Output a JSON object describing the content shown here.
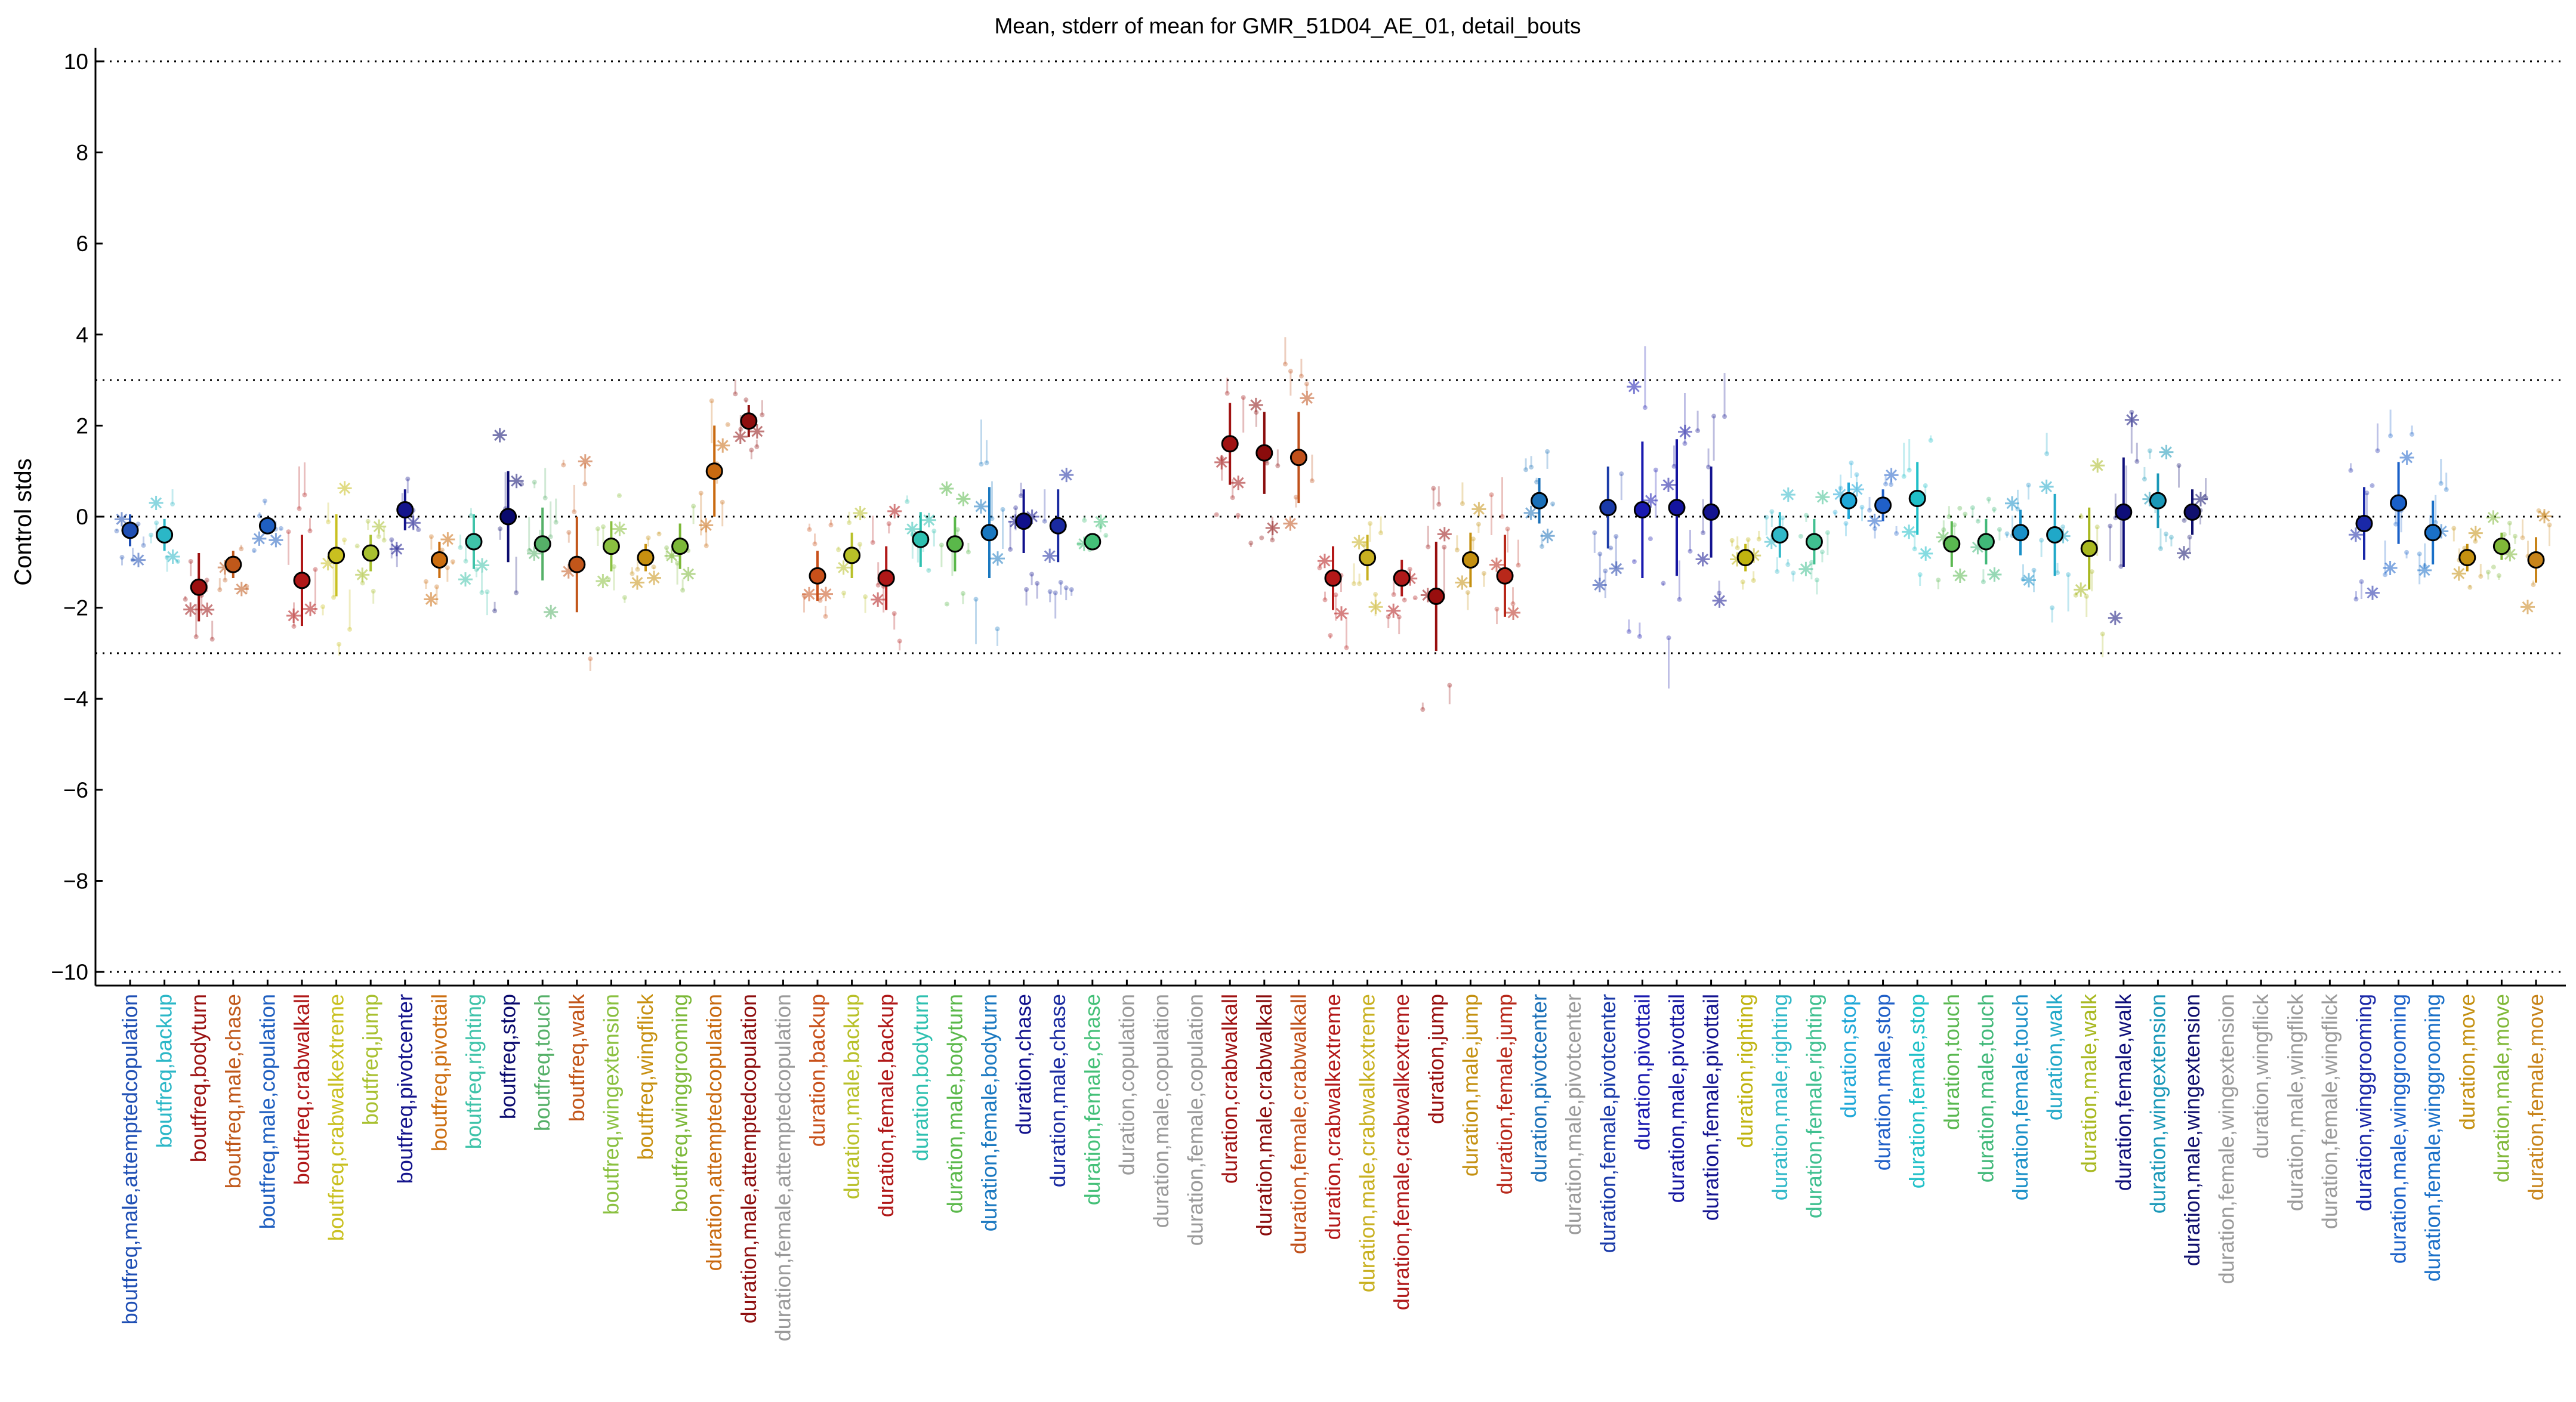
{
  "chart_data": {
    "type": "scatter",
    "title": "Mean, stderr of mean for GMR_51D04_AE_01, detail_bouts",
    "ylabel": "Control stds",
    "xlabel": "",
    "ylim": [
      -10.3,
      10.3
    ],
    "yticks": [
      -10,
      -8,
      -6,
      -4,
      -2,
      0,
      2,
      4,
      6,
      8,
      10
    ],
    "reference_lines": [
      -10,
      -3,
      0,
      3,
      10
    ],
    "grid": false,
    "categories": [
      {
        "label": "boutfreq,male,attemptedcopulation",
        "mean": -0.3,
        "err": 0.35,
        "color": "#1f4fb4"
      },
      {
        "label": "boutfreq,backup",
        "mean": -0.4,
        "err": 0.35,
        "color": "#2bb7c7"
      },
      {
        "label": "boutfreq,bodyturn",
        "mean": -1.55,
        "err": 0.75,
        "color": "#9b1010"
      },
      {
        "label": "boutfreq,male,chase",
        "mean": -1.05,
        "err": 0.3,
        "color": "#c0581a"
      },
      {
        "label": "boutfreq,male,copulation",
        "mean": -0.2,
        "err": 0.15,
        "color": "#1f5fc0"
      },
      {
        "label": "boutfreq,crabwalkall",
        "mean": -1.4,
        "err": 1.0,
        "color": "#b01818"
      },
      {
        "label": "boutfreq,crabwalkextreme",
        "mean": -0.85,
        "err": 0.9,
        "color": "#c9c020"
      },
      {
        "label": "boutfreq,jump",
        "mean": -0.8,
        "err": 0.4,
        "color": "#a8c030"
      },
      {
        "label": "boutfreq,pivotcenter",
        "mean": 0.15,
        "err": 0.45,
        "color": "#14148c"
      },
      {
        "label": "boutfreq,pivottail",
        "mean": -0.95,
        "err": 0.4,
        "color": "#cc6e10"
      },
      {
        "label": "boutfreq,righting",
        "mean": -0.55,
        "err": 0.6,
        "color": "#3fc3a9"
      },
      {
        "label": "boutfreq,stop",
        "mean": 0.0,
        "err": 1.0,
        "color": "#0a0a6e"
      },
      {
        "label": "boutfreq,touch",
        "mean": -0.6,
        "err": 0.8,
        "color": "#55b068"
      },
      {
        "label": "boutfreq,walk",
        "mean": -1.05,
        "err": 1.05,
        "color": "#c2561a"
      },
      {
        "label": "boutfreq,wingextension",
        "mean": -0.65,
        "err": 0.55,
        "color": "#8ac040"
      },
      {
        "label": "boutfreq,wingflick",
        "mean": -0.9,
        "err": 0.3,
        "color": "#c79010"
      },
      {
        "label": "boutfreq,winggrooming",
        "mean": -0.65,
        "err": 0.5,
        "color": "#7cb838"
      },
      {
        "label": "duration,attemptedcopulation",
        "mean": 1.0,
        "err": 1.0,
        "color": "#c96a10"
      },
      {
        "label": "duration,male,attemptedcopulation",
        "mean": 2.1,
        "err": 0.35,
        "color": "#8e0e0e"
      },
      {
        "label": "duration,female,attemptedcopulation",
        "mean": null,
        "err": null,
        "color": "#9a9a9a"
      },
      {
        "label": "duration,backup",
        "mean": -1.3,
        "err": 0.55,
        "color": "#c8501a"
      },
      {
        "label": "duration,male,backup",
        "mean": -0.85,
        "err": 0.5,
        "color": "#b8c028"
      },
      {
        "label": "duration,female,backup",
        "mean": -1.35,
        "err": 0.7,
        "color": "#b01818"
      },
      {
        "label": "duration,bodyturn",
        "mean": -0.5,
        "err": 0.6,
        "color": "#2ec0b0"
      },
      {
        "label": "duration,male,bodyturn",
        "mean": -0.6,
        "err": 0.6,
        "color": "#5ab84a"
      },
      {
        "label": "duration,female,bodyturn",
        "mean": -0.35,
        "err": 1.0,
        "color": "#1a78c0"
      },
      {
        "label": "duration,chase",
        "mean": -0.1,
        "err": 0.7,
        "color": "#10108c"
      },
      {
        "label": "duration,male,chase",
        "mean": -0.2,
        "err": 0.8,
        "color": "#1a2aa0"
      },
      {
        "label": "duration,female,chase",
        "mean": -0.55,
        "err": 0.15,
        "color": "#44c078"
      },
      {
        "label": "duration,copulation",
        "mean": null,
        "err": null,
        "color": "#9a9a9a"
      },
      {
        "label": "duration,male,copulation",
        "mean": null,
        "err": null,
        "color": "#9a9a9a"
      },
      {
        "label": "duration,female,copulation",
        "mean": null,
        "err": null,
        "color": "#9a9a9a"
      },
      {
        "label": "duration,crabwalkall",
        "mean": 1.6,
        "err": 0.9,
        "color": "#a01212"
      },
      {
        "label": "duration,male,crabwalkall",
        "mean": 1.4,
        "err": 0.9,
        "color": "#8a0c0c"
      },
      {
        "label": "duration,female,crabwalkall",
        "mean": 1.3,
        "err": 1.0,
        "color": "#c0501a"
      },
      {
        "label": "duration,crabwalkextreme",
        "mean": -1.35,
        "err": 0.7,
        "color": "#b41818"
      },
      {
        "label": "duration,male,crabwalkextreme",
        "mean": -0.9,
        "err": 0.5,
        "color": "#c8b020"
      },
      {
        "label": "duration,female,crabwalkextreme",
        "mean": -1.35,
        "err": 0.4,
        "color": "#b01a1a"
      },
      {
        "label": "duration,jump",
        "mean": -1.75,
        "err": 1.2,
        "color": "#980e0e"
      },
      {
        "label": "duration,male,jump",
        "mean": -0.95,
        "err": 0.6,
        "color": "#c49010"
      },
      {
        "label": "duration,female,jump",
        "mean": -1.3,
        "err": 0.9,
        "color": "#b8281a"
      },
      {
        "label": "duration,pivotcenter",
        "mean": 0.35,
        "err": 0.5,
        "color": "#1a70b8"
      },
      {
        "label": "duration,male,pivotcenter",
        "mean": null,
        "err": null,
        "color": "#9a9a9a"
      },
      {
        "label": "duration,female,pivotcenter",
        "mean": 0.2,
        "err": 0.9,
        "color": "#1a3aa8"
      },
      {
        "label": "duration,pivottail",
        "mean": 0.15,
        "err": 1.5,
        "color": "#1a1ab0"
      },
      {
        "label": "duration,male,pivottail",
        "mean": 0.2,
        "err": 1.5,
        "color": "#1414a0"
      },
      {
        "label": "duration,female,pivottail",
        "mean": 0.1,
        "err": 1.0,
        "color": "#141490"
      },
      {
        "label": "duration,righting",
        "mean": -0.9,
        "err": 0.3,
        "color": "#c0b410"
      },
      {
        "label": "duration,male,righting",
        "mean": -0.4,
        "err": 0.5,
        "color": "#30b8c8"
      },
      {
        "label": "duration,female,righting",
        "mean": -0.55,
        "err": 0.5,
        "color": "#40c090"
      },
      {
        "label": "duration,stop",
        "mean": 0.35,
        "err": 0.4,
        "color": "#20a8d8"
      },
      {
        "label": "duration,male,stop",
        "mean": 0.25,
        "err": 0.35,
        "color": "#2060c8"
      },
      {
        "label": "duration,female,stop",
        "mean": 0.4,
        "err": 0.8,
        "color": "#20c0c8"
      },
      {
        "label": "duration,touch",
        "mean": -0.6,
        "err": 0.5,
        "color": "#5ab850"
      },
      {
        "label": "duration,male,touch",
        "mean": -0.55,
        "err": 0.5,
        "color": "#40b878"
      },
      {
        "label": "duration,female,touch",
        "mean": -0.35,
        "err": 0.5,
        "color": "#1a90c8"
      },
      {
        "label": "duration,walk",
        "mean": -0.4,
        "err": 0.9,
        "color": "#20a8c8"
      },
      {
        "label": "duration,male,walk",
        "mean": -0.7,
        "err": 0.9,
        "color": "#a8b820"
      },
      {
        "label": "duration,female,walk",
        "mean": 0.1,
        "err": 1.2,
        "color": "#0e0e7a"
      },
      {
        "label": "duration,wingextension",
        "mean": 0.35,
        "err": 0.6,
        "color": "#1a98b8"
      },
      {
        "label": "duration,male,wingextension",
        "mean": 0.1,
        "err": 0.5,
        "color": "#10106e"
      },
      {
        "label": "duration,female,wingextension",
        "mean": null,
        "err": null,
        "color": "#9a9a9a"
      },
      {
        "label": "duration,wingflick",
        "mean": null,
        "err": null,
        "color": "#9a9a9a"
      },
      {
        "label": "duration,male,wingflick",
        "mean": null,
        "err": null,
        "color": "#9a9a9a"
      },
      {
        "label": "duration,female,wingflick",
        "mean": null,
        "err": null,
        "color": "#9a9a9a"
      },
      {
        "label": "duration,winggrooming",
        "mean": -0.15,
        "err": 0.8,
        "color": "#1a28a8"
      },
      {
        "label": "duration,male,winggrooming",
        "mean": 0.3,
        "err": 0.9,
        "color": "#1a60c8"
      },
      {
        "label": "duration,female,winggrooming",
        "mean": -0.35,
        "err": 0.7,
        "color": "#1a70c8"
      },
      {
        "label": "duration,move",
        "mean": -0.9,
        "err": 0.3,
        "color": "#c49010"
      },
      {
        "label": "duration,male,move",
        "mean": -0.65,
        "err": 0.3,
        "color": "#80b838"
      },
      {
        "label": "duration,female,move",
        "mean": -0.95,
        "err": 0.5,
        "color": "#c8841a"
      }
    ]
  }
}
